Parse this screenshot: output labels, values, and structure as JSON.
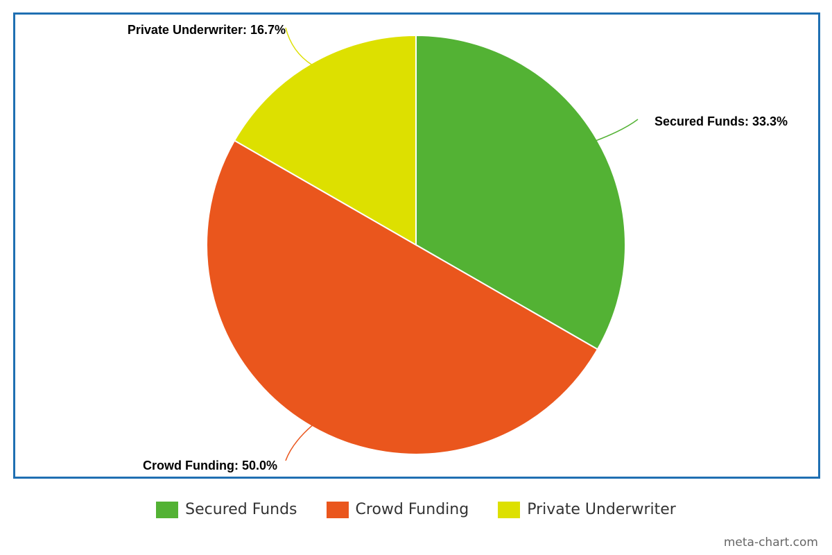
{
  "chart_data": {
    "type": "pie",
    "title": "",
    "slices": [
      {
        "name": "Secured Funds",
        "value": 33.3,
        "label": "Secured Funds: 33.3%",
        "color": "#53b234"
      },
      {
        "name": "Crowd Funding",
        "value": 50.0,
        "label": "Crowd Funding: 50.0%",
        "color": "#ea561d"
      },
      {
        "name": "Private Underwriter",
        "value": 16.7,
        "label": "Private Underwriter: 16.7%",
        "color": "#dde000"
      }
    ],
    "legend_position": "bottom",
    "start": "top, clockwise"
  },
  "legend": {
    "items": [
      {
        "label": "Secured Funds",
        "color": "#53b234"
      },
      {
        "label": "Crowd Funding",
        "color": "#ea561d"
      },
      {
        "label": "Private Underwriter",
        "color": "#dde000"
      }
    ]
  },
  "credit": "meta-chart.com",
  "frame_color": "#1f6fb2"
}
